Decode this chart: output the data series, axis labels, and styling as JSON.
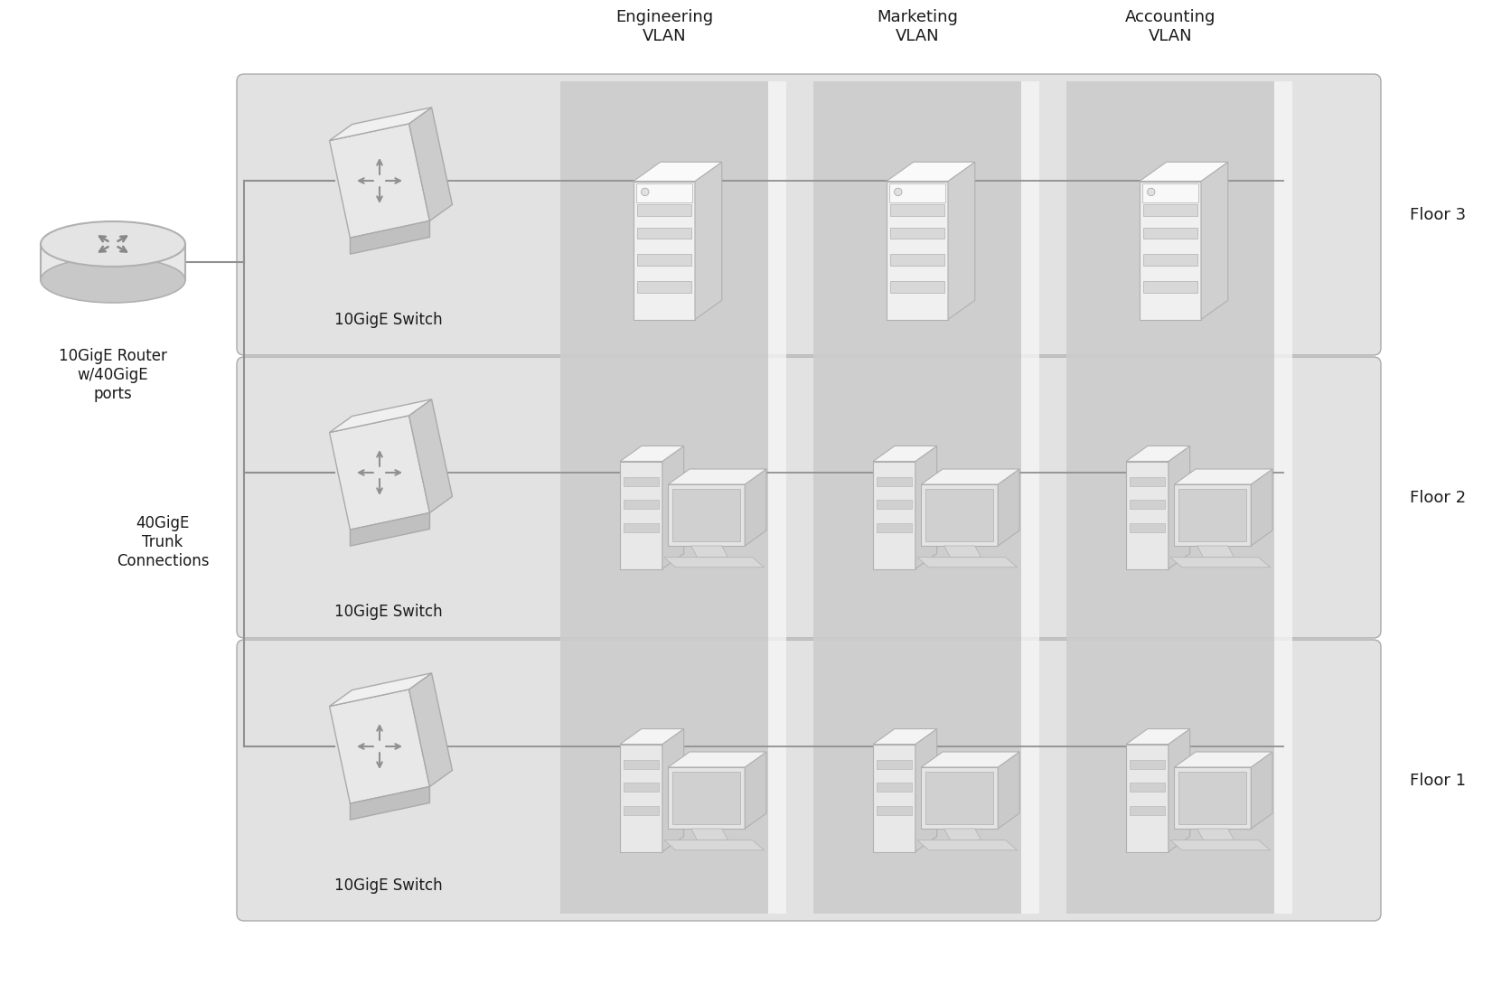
{
  "white": "#ffffff",
  "light_gray": "#e0e0e0",
  "lighter_gray": "#ebebeb",
  "medium_gray": "#c8c8c8",
  "dark_gray": "#606060",
  "text_color": "#1a1a1a",
  "line_color": "#909090",
  "floor_bg": "#e2e2e2",
  "vlan_bg": "#cccccc",
  "router_label": "10GigE Router\nw/40GigE\nports",
  "trunk_label": "40GigE\nTrunk\nConnections",
  "switch_label": "10GigE Switch",
  "vlan_labels": [
    "Engineering\nVLAN",
    "Marketing\nVLAN",
    "Accounting\nVLAN"
  ],
  "floor_labels": [
    "Floor 3",
    "Floor 2",
    "Floor 1"
  ],
  "label_fontsize": 13,
  "small_fontsize": 12
}
